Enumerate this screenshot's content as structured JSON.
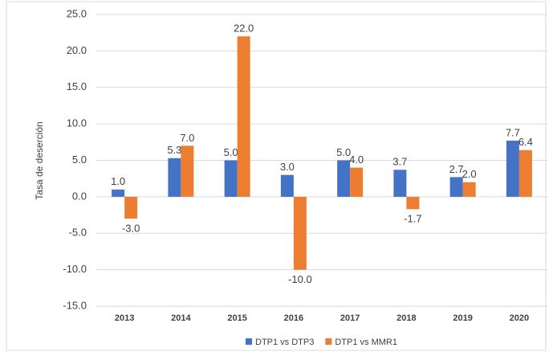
{
  "chart_data": {
    "type": "bar",
    "y_label": "Tasa de deserción",
    "categories": [
      "2013",
      "2014",
      "2015",
      "2016",
      "2017",
      "2018",
      "2019",
      "2020"
    ],
    "series": [
      {
        "name": "DTP1 vs DTP3",
        "color": "#4472c4",
        "values": [
          1.0,
          5.3,
          5.0,
          3.0,
          5.0,
          3.7,
          2.7,
          7.7
        ],
        "value_labels": [
          "1.0",
          "5.3",
          "5.0",
          "3.0",
          "5.0",
          "3.7",
          "2.7",
          "7.7"
        ]
      },
      {
        "name": "DTP1 vs MMR1",
        "color": "#ed7d31",
        "values": [
          -3.0,
          7.0,
          22.0,
          -10.0,
          4.0,
          -1.7,
          2.0,
          6.4
        ],
        "value_labels": [
          "-3.0",
          "7.0",
          "22.0",
          "-10.0",
          "4.0",
          "-1.7",
          "2.0",
          "6.4"
        ]
      }
    ],
    "ylim": [
      -15,
      25
    ],
    "yticks": [
      {
        "value": -15,
        "label": "-15.0"
      },
      {
        "value": -10,
        "label": "-10.0"
      },
      {
        "value": -5,
        "label": "-5.0"
      },
      {
        "value": 0,
        "label": "0.0"
      },
      {
        "value": 5,
        "label": "5.0"
      },
      {
        "value": 10,
        "label": "10.0"
      },
      {
        "value": 15,
        "label": "15.0"
      },
      {
        "value": 20,
        "label": "20.0"
      },
      {
        "value": 25,
        "label": "25.0"
      }
    ],
    "grid": true,
    "legend": "bottom"
  }
}
